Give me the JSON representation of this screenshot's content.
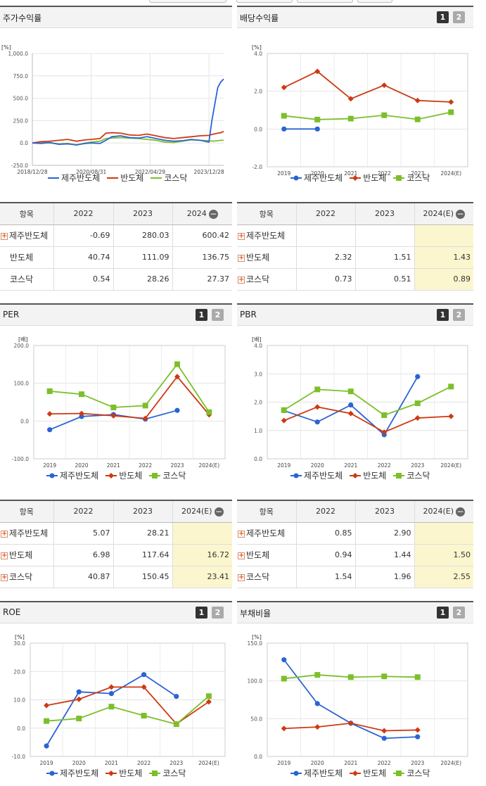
{
  "colors": {
    "company": "#2a64d4",
    "sector": "#cc3a12",
    "index": "#7cbf2a"
  },
  "series_names": [
    "제주반도체",
    "반도체",
    "코스닥"
  ],
  "pager": {
    "one": "1",
    "two": "2"
  },
  "charts": {
    "stock_return": {
      "title": "주가수익률",
      "unit": "[%]"
    },
    "dividend": {
      "title": "배당수익률",
      "unit": "[%]"
    },
    "per": {
      "title": "PER",
      "unit": "[배]"
    },
    "pbr": {
      "title": "PBR",
      "unit": "[배]"
    },
    "roe": {
      "title": "ROE",
      "unit": "[%]"
    },
    "debt": {
      "title": "부채비율",
      "unit": "[%]"
    }
  },
  "tables": {
    "stock_return": {
      "headers": [
        "항목",
        "2022",
        "2023",
        "2024"
      ],
      "rows": [
        [
          "제주반도체",
          "-0.69",
          "280.03",
          "600.42"
        ],
        [
          "반도체",
          "40.74",
          "111.09",
          "136.75"
        ],
        [
          "코스닥",
          "0.54",
          "28.26",
          "27.37"
        ]
      ]
    },
    "dividend": {
      "headers": [
        "항목",
        "2022",
        "2023",
        "2024(E)"
      ],
      "rows": [
        [
          "제주반도체",
          "",
          "",
          ""
        ],
        [
          "반도체",
          "2.32",
          "1.51",
          "1.43"
        ],
        [
          "코스닥",
          "0.73",
          "0.51",
          "0.89"
        ]
      ]
    },
    "per": {
      "headers": [
        "항목",
        "2022",
        "2023",
        "2024(E)"
      ],
      "rows": [
        [
          "제주반도체",
          "5.07",
          "28.21",
          ""
        ],
        [
          "반도체",
          "6.98",
          "117.64",
          "16.72"
        ],
        [
          "코스닥",
          "40.87",
          "150.45",
          "23.41"
        ]
      ]
    },
    "pbr": {
      "headers": [
        "항목",
        "2022",
        "2023",
        "2024(E)"
      ],
      "rows": [
        [
          "제주반도체",
          "0.85",
          "2.90",
          ""
        ],
        [
          "반도체",
          "0.94",
          "1.44",
          "1.50"
        ],
        [
          "코스닥",
          "1.54",
          "1.96",
          "2.55"
        ]
      ]
    }
  },
  "chart_data": [
    {
      "id": "stock_return",
      "type": "line",
      "title": "주가수익률",
      "ylabel": "[%]",
      "ylim": [
        -250,
        1000
      ],
      "yticks": [
        "-250.0",
        "0.0",
        "250.0",
        "500.0",
        "750.0",
        "1,000.0"
      ],
      "xticks": [
        "2018/12/28",
        "2020/08/31",
        "2022/04/29",
        "2023/12/28"
      ],
      "x_range": [
        "2018/12/28",
        "2024/05"
      ],
      "series": [
        {
          "name": "제주반도체",
          "x": [
            "2018-12",
            "2019-03",
            "2019-06",
            "2019-09",
            "2019-12",
            "2020-03",
            "2020-06",
            "2020-08",
            "2020-11",
            "2021-01",
            "2021-03",
            "2021-06",
            "2021-09",
            "2021-12",
            "2022-03",
            "2022-06",
            "2022-09",
            "2022-12",
            "2023-03",
            "2023-06",
            "2023-09",
            "2023-12",
            "2024-01",
            "2024-03",
            "2024-04",
            "2024-05"
          ],
          "values": [
            0,
            -5,
            5,
            -15,
            -10,
            -20,
            -5,
            0,
            -5,
            30,
            70,
            80,
            60,
            55,
            70,
            50,
            30,
            20,
            25,
            40,
            30,
            10,
            250,
            620,
            680,
            715
          ]
        },
        {
          "name": "반도체",
          "x": [
            "2018-12",
            "2019-03",
            "2019-06",
            "2019-09",
            "2019-12",
            "2020-03",
            "2020-06",
            "2020-08",
            "2020-11",
            "2021-01",
            "2021-03",
            "2021-06",
            "2021-09",
            "2021-12",
            "2022-03",
            "2022-06",
            "2022-09",
            "2022-12",
            "2023-03",
            "2023-06",
            "2023-09",
            "2023-12",
            "2024-01",
            "2024-03",
            "2024-04",
            "2024-05"
          ],
          "values": [
            0,
            15,
            20,
            30,
            40,
            20,
            35,
            40,
            50,
            110,
            115,
            110,
            90,
            85,
            100,
            80,
            60,
            50,
            60,
            70,
            80,
            85,
            95,
            110,
            115,
            130
          ]
        },
        {
          "name": "코스닥",
          "x": [
            "2018-12",
            "2019-03",
            "2019-06",
            "2019-09",
            "2019-12",
            "2020-03",
            "2020-06",
            "2020-08",
            "2020-11",
            "2021-01",
            "2021-03",
            "2021-06",
            "2021-09",
            "2021-12",
            "2022-03",
            "2022-06",
            "2022-09",
            "2022-12",
            "2023-03",
            "2023-06",
            "2023-09",
            "2023-12",
            "2024-01",
            "2024-03",
            "2024-04",
            "2024-05"
          ],
          "values": [
            0,
            5,
            0,
            -10,
            -5,
            -25,
            0,
            10,
            20,
            50,
            55,
            60,
            55,
            50,
            40,
            30,
            10,
            5,
            20,
            35,
            30,
            25,
            20,
            25,
            30,
            30
          ]
        }
      ]
    },
    {
      "id": "dividend",
      "type": "line",
      "title": "배당수익률",
      "ylabel": "[%]",
      "ylim": [
        -2,
        4
      ],
      "yticks": [
        "-2.0",
        "0.0",
        "2.0",
        "4.0"
      ],
      "categories": [
        "2019",
        "2020",
        "2021",
        "2022",
        "2023",
        "2024(E)"
      ],
      "series": [
        {
          "name": "제주반도체",
          "values": [
            0.0,
            0.0,
            null,
            null,
            null,
            null
          ]
        },
        {
          "name": "반도체",
          "values": [
            2.2,
            3.05,
            1.6,
            2.32,
            1.51,
            1.43
          ]
        },
        {
          "name": "코스닥",
          "values": [
            0.7,
            0.5,
            0.55,
            0.73,
            0.51,
            0.89
          ]
        }
      ]
    },
    {
      "id": "per",
      "type": "line",
      "title": "PER",
      "ylabel": "[배]",
      "ylim": [
        -100,
        200
      ],
      "yticks": [
        "-100.0",
        "0.0",
        "100.0",
        "200.0"
      ],
      "categories": [
        "2019",
        "2020",
        "2021",
        "2022",
        "2023",
        "2024(E)"
      ],
      "series": [
        {
          "name": "제주반도체",
          "values": [
            -23,
            12,
            17,
            5.07,
            28.21,
            null
          ]
        },
        {
          "name": "반도체",
          "values": [
            19,
            20,
            14,
            6.98,
            117.64,
            16.72
          ]
        },
        {
          "name": "코스닥",
          "values": [
            79,
            71,
            36,
            40.87,
            150.45,
            23.41
          ]
        }
      ]
    },
    {
      "id": "pbr",
      "type": "line",
      "title": "PBR",
      "ylabel": "[배]",
      "ylim": [
        0,
        4
      ],
      "yticks": [
        "0.0",
        "1.0",
        "2.0",
        "3.0",
        "4.0"
      ],
      "categories": [
        "2019",
        "2020",
        "2021",
        "2022",
        "2023",
        "2024(E)"
      ],
      "series": [
        {
          "name": "제주반도체",
          "values": [
            1.7,
            1.3,
            1.9,
            0.85,
            2.9,
            null
          ]
        },
        {
          "name": "반도체",
          "values": [
            1.35,
            1.83,
            1.6,
            0.94,
            1.44,
            1.5
          ]
        },
        {
          "name": "코스닥",
          "values": [
            1.72,
            2.45,
            2.38,
            1.54,
            1.96,
            2.55
          ]
        }
      ]
    },
    {
      "id": "roe",
      "type": "line",
      "title": "ROE",
      "ylabel": "[%]",
      "ylim": [
        -10,
        30
      ],
      "yticks": [
        "-10.0",
        "0.0",
        "10.0",
        "20.0",
        "30.0"
      ],
      "categories": [
        "2019",
        "2020",
        "2021",
        "2022",
        "2023",
        "2024(E)"
      ],
      "series": [
        {
          "name": "제주반도체",
          "values": [
            -6.3,
            12.8,
            12.2,
            18.9,
            11.2,
            null
          ]
        },
        {
          "name": "반도체",
          "values": [
            8.0,
            10.2,
            14.5,
            14.5,
            1.5,
            9.3
          ]
        },
        {
          "name": "코스닥",
          "values": [
            2.5,
            3.4,
            7.6,
            4.4,
            1.4,
            11.3
          ]
        }
      ]
    },
    {
      "id": "debt",
      "type": "line",
      "title": "부채비율",
      "ylabel": "[%]",
      "ylim": [
        0,
        150
      ],
      "yticks": [
        "0.0",
        "50.0",
        "100.0",
        "150.0"
      ],
      "categories": [
        "2019",
        "2020",
        "2021",
        "2022",
        "2023",
        "2024(E)"
      ],
      "series": [
        {
          "name": "제주반도체",
          "values": [
            128,
            70,
            44,
            24,
            26,
            null
          ]
        },
        {
          "name": "반도체",
          "values": [
            37,
            39,
            44,
            34,
            35,
            null
          ]
        },
        {
          "name": "코스닥",
          "values": [
            103,
            108,
            105,
            106,
            105,
            null
          ]
        }
      ]
    }
  ]
}
